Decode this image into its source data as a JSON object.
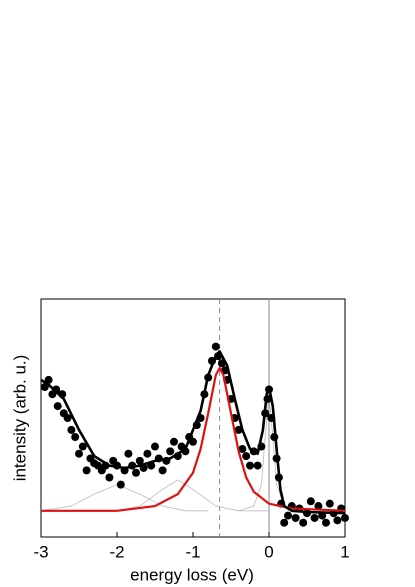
{
  "chart_data": {
    "type": "scatter",
    "xlabel": "energy loss (eV)",
    "ylabel": "intensity (arb. u.)",
    "xlim": [
      -3,
      1
    ],
    "xticks": [
      -3,
      -2,
      -1,
      0,
      1
    ],
    "ylim": [
      0,
      1
    ],
    "vlines": [
      {
        "x": -0.65,
        "style": "dashed",
        "color": "#888888"
      },
      {
        "x": 0,
        "style": "solid",
        "color": "#888888"
      }
    ],
    "series": [
      {
        "mode": "line",
        "color": "#bbbbbb",
        "width": 0.8,
        "x": [
          -3,
          -2.6,
          -2.3,
          -2,
          -1.7,
          -1.4,
          -1.1,
          -0.8
        ],
        "values": [
          0.11,
          0.13,
          0.18,
          0.22,
          0.18,
          0.13,
          0.11,
          0.11
        ]
      },
      {
        "mode": "line",
        "color": "#bbbbbb",
        "width": 0.8,
        "x": [
          -2,
          -1.7,
          -1.4,
          -1.2,
          -1.0,
          -0.7,
          -0.4,
          0
        ],
        "values": [
          0.11,
          0.13,
          0.2,
          0.24,
          0.2,
          0.13,
          0.11,
          0.11
        ]
      },
      {
        "mode": "line",
        "color": "#bbbbbb",
        "width": 0.8,
        "x": [
          -0.4,
          -0.2,
          -0.1,
          -0.05,
          0,
          0.05,
          0.1,
          0.2,
          0.4
        ],
        "values": [
          0.11,
          0.13,
          0.22,
          0.42,
          0.6,
          0.42,
          0.22,
          0.13,
          0.11
        ]
      },
      {
        "mode": "markers",
        "color": "#000000",
        "x": [
          -2.95,
          -2.9,
          -2.85,
          -2.8,
          -2.78,
          -2.72,
          -2.7,
          -2.65,
          -2.6,
          -2.55,
          -2.5,
          -2.45,
          -2.4,
          -2.35,
          -2.3,
          -2.25,
          -2.2,
          -2.15,
          -2.1,
          -2.05,
          -2.0,
          -1.95,
          -1.9,
          -1.85,
          -1.8,
          -1.75,
          -1.7,
          -1.65,
          -1.6,
          -1.55,
          -1.5,
          -1.45,
          -1.4,
          -1.35,
          -1.3,
          -1.25,
          -1.2,
          -1.15,
          -1.1,
          -1.05,
          -1.0,
          -0.95,
          -0.9,
          -0.85,
          -0.8,
          -0.75,
          -0.7,
          -0.67,
          -0.62,
          -0.58,
          -0.55,
          -0.5,
          -0.45,
          -0.4,
          -0.35,
          -0.3,
          -0.25,
          -0.2,
          -0.15,
          -0.1,
          -0.05,
          -0.02,
          0.0,
          0.03,
          0.07,
          0.1,
          0.13,
          0.16,
          0.2,
          0.25,
          0.3,
          0.35,
          0.4,
          0.45,
          0.5,
          0.55,
          0.6,
          0.65,
          0.7,
          0.75,
          0.8,
          0.85,
          0.9,
          0.95,
          1.0
        ],
        "values": [
          0.63,
          0.66,
          0.6,
          0.62,
          0.55,
          0.6,
          0.52,
          0.5,
          0.45,
          0.42,
          0.35,
          0.38,
          0.28,
          0.33,
          0.31,
          0.3,
          0.28,
          0.3,
          0.25,
          0.32,
          0.3,
          0.22,
          0.28,
          0.35,
          0.3,
          0.27,
          0.32,
          0.29,
          0.35,
          0.3,
          0.38,
          0.33,
          0.28,
          0.32,
          0.36,
          0.4,
          0.34,
          0.38,
          0.36,
          0.42,
          0.4,
          0.47,
          0.5,
          0.6,
          0.67,
          0.74,
          0.8,
          0.76,
          0.73,
          0.7,
          0.66,
          0.58,
          0.5,
          0.45,
          0.37,
          0.34,
          0.3,
          0.36,
          0.3,
          0.38,
          0.52,
          0.58,
          0.62,
          0.5,
          0.42,
          0.33,
          0.25,
          0.14,
          0.06,
          0.09,
          0.13,
          0.08,
          0.12,
          0.06,
          0.1,
          0.15,
          0.08,
          0.13,
          0.09,
          0.06,
          0.14,
          0.1,
          0.07,
          0.12,
          0.08
        ]
      },
      {
        "mode": "line",
        "color": "#dd1111",
        "width": 2.2,
        "x": [
          -3,
          -2,
          -1.5,
          -1.2,
          -1.0,
          -0.9,
          -0.8,
          -0.7,
          -0.65,
          -0.6,
          -0.5,
          -0.4,
          -0.3,
          -0.2,
          0,
          0.3,
          1
        ],
        "values": [
          0.11,
          0.11,
          0.13,
          0.18,
          0.27,
          0.37,
          0.52,
          0.68,
          0.71,
          0.68,
          0.52,
          0.36,
          0.25,
          0.19,
          0.14,
          0.12,
          0.11
        ]
      },
      {
        "mode": "line",
        "color": "#000000",
        "width": 2.6,
        "x": [
          -3,
          -2.9,
          -2.7,
          -2.5,
          -2.3,
          -2.1,
          -1.9,
          -1.7,
          -1.5,
          -1.3,
          -1.1,
          -0.9,
          -0.8,
          -0.7,
          -0.65,
          -0.55,
          -0.45,
          -0.35,
          -0.25,
          -0.15,
          -0.08,
          -0.03,
          0,
          0.05,
          0.1,
          0.15,
          0.2,
          0.3,
          0.5,
          1
        ],
        "values": [
          0.66,
          0.64,
          0.58,
          0.45,
          0.34,
          0.3,
          0.29,
          0.3,
          0.32,
          0.33,
          0.37,
          0.53,
          0.68,
          0.76,
          0.78,
          0.72,
          0.58,
          0.45,
          0.37,
          0.35,
          0.45,
          0.6,
          0.63,
          0.55,
          0.37,
          0.2,
          0.13,
          0.11,
          0.105,
          0.1
        ]
      }
    ]
  }
}
